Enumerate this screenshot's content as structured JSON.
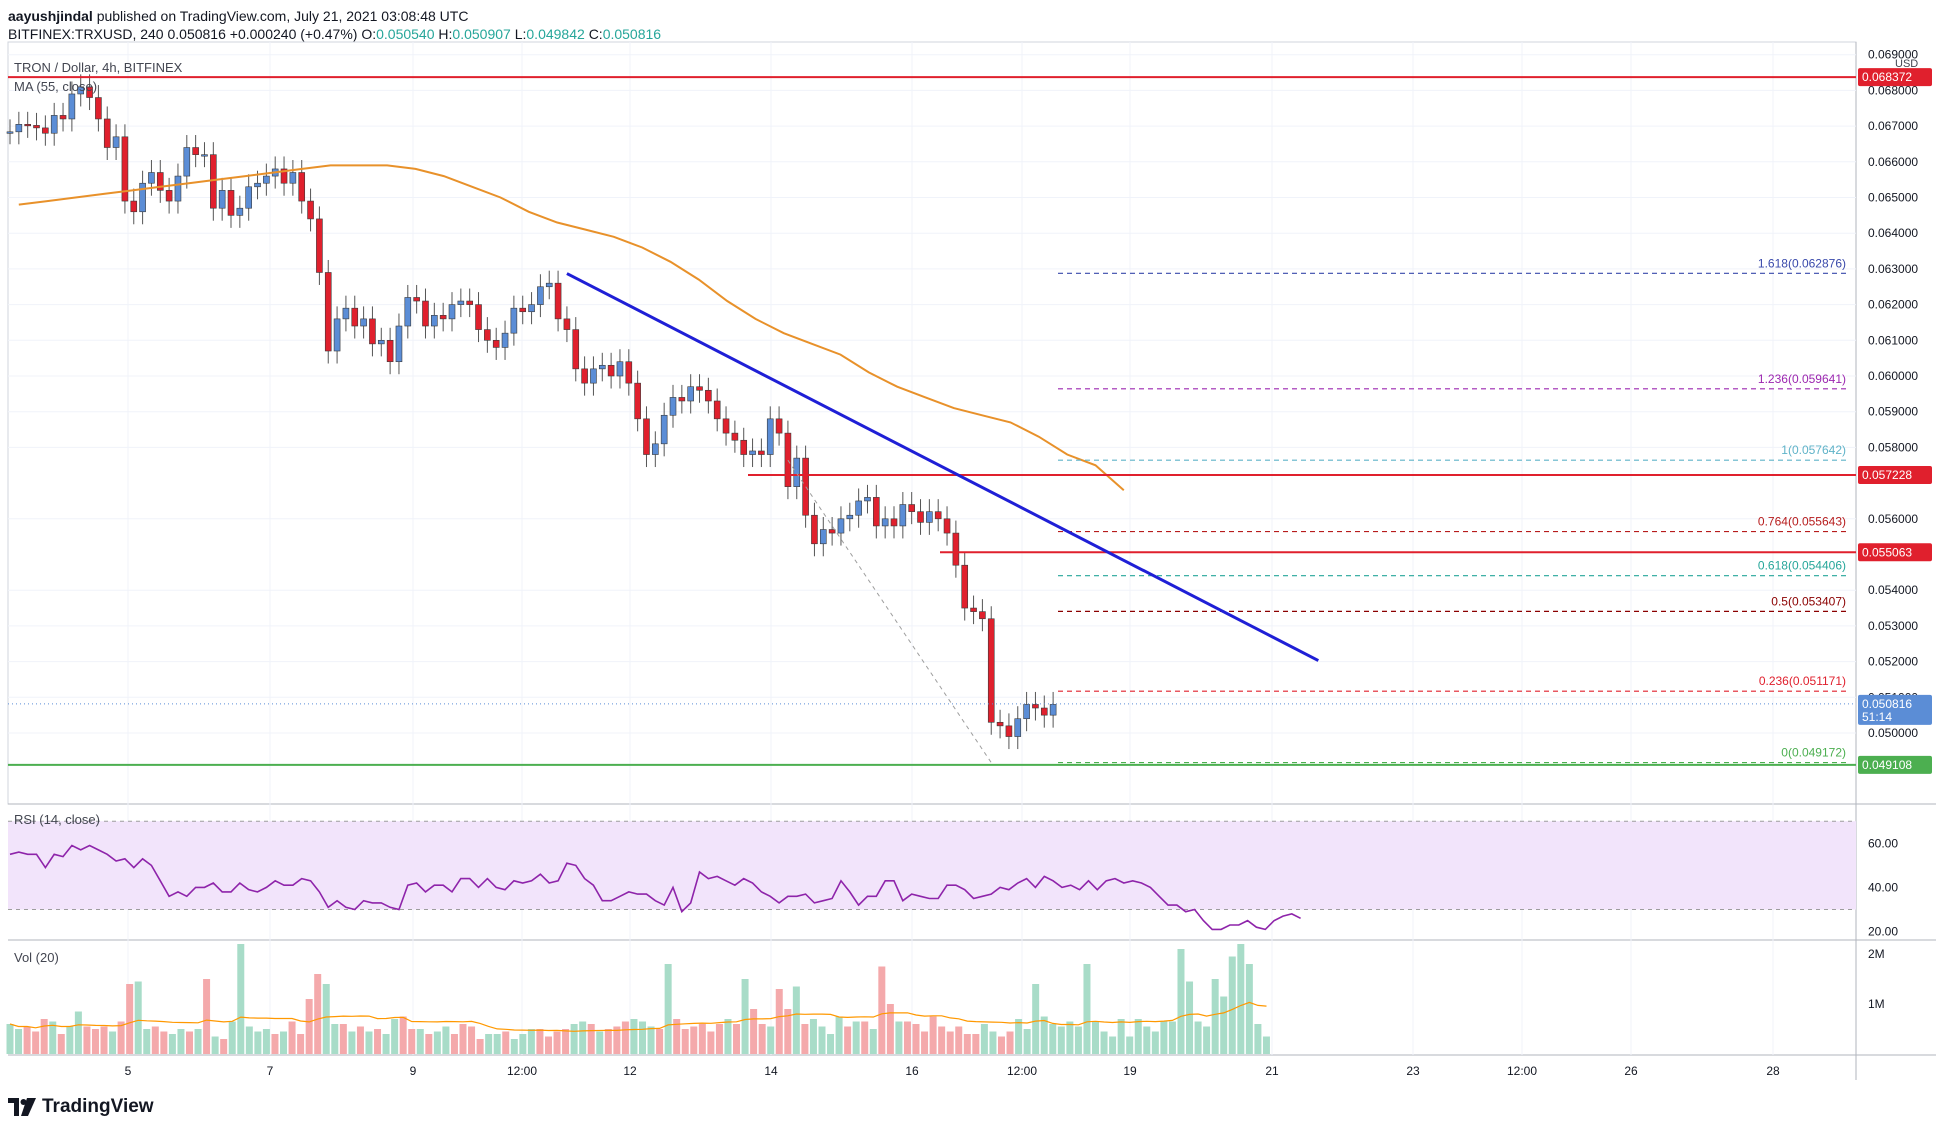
{
  "header": {
    "author": "aayushjindal",
    "published_text": "published on TradingView.com, July 21, 2021 03:08:48 UTC",
    "symbol": "BITFINEX:TRXUSD, 240",
    "last": "0.050816",
    "change": "+0.000240 (+0.47%)",
    "o_label": "O:",
    "o": "0.050540",
    "h_label": "H:",
    "h": "0.050907",
    "l_label": "L:",
    "l": "0.049842",
    "c_label": "C:",
    "c": "0.050816"
  },
  "legend": {
    "title": "TRON / Dollar, 4h, BITFINEX",
    "ma": "MA (55, close)",
    "rsi": "RSI (14, close)",
    "vol": "Vol (20)",
    "currency": "USD",
    "countdown": "51:14"
  },
  "footer": {
    "brand": "TradingView"
  },
  "colors": {
    "up": "#5b8dd6",
    "down": "#e0202d",
    "ma": "#e8912a",
    "trend": "#1f1fd6",
    "support": "#4caf50",
    "resistance": "#e0202d"
  },
  "chart_data": [
    {
      "type": "candlestick",
      "title": "TRON / Dollar, 4h, BITFINEX",
      "x_tick_labels": [
        "5",
        "7",
        "9",
        "12:00",
        "12",
        "14",
        "16",
        "12:00",
        "19",
        "21",
        "23",
        "12:00",
        "26",
        "28"
      ],
      "y_tick_labels": [
        "0.050000",
        "0.051000",
        "0.052000",
        "0.053000",
        "0.054000",
        "0.056000",
        "0.058000",
        "0.059000",
        "0.060000",
        "0.061000",
        "0.062000",
        "0.063000",
        "0.064000",
        "0.065000",
        "0.066000",
        "0.067000",
        "0.068000",
        "0.069000"
      ],
      "ylim": [
        0.0484,
        0.0694
      ],
      "closes": [
        0.06684,
        0.06705,
        0.06702,
        0.06695,
        0.0668,
        0.0673,
        0.0672,
        0.0679,
        0.0681,
        0.0678,
        0.0672,
        0.0664,
        0.0667,
        0.0649,
        0.0646,
        0.0654,
        0.0657,
        0.0652,
        0.0649,
        0.0656,
        0.0664,
        0.0662,
        0.0662,
        0.0647,
        0.0652,
        0.0645,
        0.0647,
        0.0653,
        0.0654,
        0.0656,
        0.0658,
        0.0654,
        0.0657,
        0.0649,
        0.0644,
        0.0629,
        0.0607,
        0.0616,
        0.0619,
        0.0614,
        0.0616,
        0.0609,
        0.061,
        0.0604,
        0.0614,
        0.0622,
        0.0621,
        0.0614,
        0.0617,
        0.0616,
        0.062,
        0.0621,
        0.062,
        0.0613,
        0.061,
        0.0608,
        0.0612,
        0.0619,
        0.0618,
        0.062,
        0.0625,
        0.0626,
        0.0616,
        0.0613,
        0.0602,
        0.0598,
        0.0602,
        0.0603,
        0.06,
        0.0604,
        0.0598,
        0.0588,
        0.0578,
        0.0581,
        0.0589,
        0.0594,
        0.0593,
        0.0597,
        0.0596,
        0.0593,
        0.0588,
        0.0584,
        0.0582,
        0.0578,
        0.0579,
        0.0578,
        0.0588,
        0.0584,
        0.0569,
        0.0577,
        0.0561,
        0.0553,
        0.0557,
        0.0556,
        0.056,
        0.0561,
        0.0565,
        0.0566,
        0.0558,
        0.056,
        0.0558,
        0.0564,
        0.0562,
        0.0559,
        0.0562,
        0.056,
        0.0556,
        0.0547,
        0.0535,
        0.0534,
        0.0532,
        0.0503,
        0.0502,
        0.0499,
        0.0504,
        0.0508,
        0.0507,
        0.0505,
        0.0508
      ],
      "ma_55": [
        0.0648,
        0.0649,
        0.065,
        0.0651,
        0.0652,
        0.0653,
        0.0654,
        0.0655,
        0.0656,
        0.0657,
        0.0658,
        0.0659,
        0.0659,
        0.0659,
        0.0658,
        0.0656,
        0.0653,
        0.065,
        0.0646,
        0.0643,
        0.0641,
        0.0639,
        0.0636,
        0.0632,
        0.0627,
        0.0621,
        0.0616,
        0.0612,
        0.0609,
        0.0606,
        0.0601,
        0.0597,
        0.0594,
        0.0591,
        0.0589,
        0.0587,
        0.0583,
        0.0578,
        0.0575,
        0.0568
      ],
      "ma_55_x_range": [
        1,
        126
      ],
      "fibonacci": [
        {
          "label": "0(0.049172)",
          "value": 0.049172
        },
        {
          "label": "0.236(0.051171)",
          "value": 0.051171
        },
        {
          "label": "0.5(0.053407)",
          "value": 0.053407
        },
        {
          "label": "0.618(0.054406)",
          "value": 0.054406
        },
        {
          "label": "0.764(0.055643)",
          "value": 0.055643
        },
        {
          "label": "1(0.057642)",
          "value": 0.057642
        },
        {
          "label": "1.236(0.059641)",
          "value": 0.059641
        },
        {
          "label": "1.618(0.062876)",
          "value": 0.062876
        }
      ],
      "levels": [
        {
          "label": "0.068372",
          "value": 0.068372,
          "color": "#e0202d"
        },
        {
          "label": "0.057228",
          "value": 0.057228,
          "color": "#e0202d"
        },
        {
          "label": "0.055063",
          "value": 0.055063,
          "color": "#e0202d"
        },
        {
          "label": "0.049108",
          "value": 0.049108,
          "color": "#4caf50"
        }
      ],
      "current_price": {
        "label": "0.050816",
        "value": 0.050816
      },
      "trendline": [
        {
          "index": 63,
          "value": 0.06287
        },
        {
          "index": 148,
          "value": 0.05203
        }
      ]
    },
    {
      "type": "line",
      "title": "RSI (14, close)",
      "y_tick_labels": [
        "60.00",
        "40.00",
        "20.00"
      ],
      "ylim": [
        18,
        76
      ],
      "band": [
        30,
        70
      ],
      "values": [
        55,
        56,
        55,
        55,
        49,
        55,
        54,
        59,
        57,
        59,
        57,
        55,
        52,
        53,
        49,
        53,
        50,
        43,
        36,
        38,
        36,
        40,
        40,
        42,
        38,
        38,
        42,
        39,
        38,
        40,
        43,
        41,
        41,
        44,
        43,
        38,
        31,
        34,
        31,
        30,
        34,
        33,
        33,
        31,
        30,
        41,
        42,
        38,
        41,
        41,
        38,
        44,
        44,
        40,
        44,
        40,
        39,
        43,
        42,
        43,
        46,
        42,
        43,
        51,
        50,
        44,
        41,
        34,
        34,
        36,
        38,
        37,
        37,
        34,
        32,
        40,
        29,
        33,
        47,
        44,
        45,
        43,
        41,
        44,
        42,
        38,
        36,
        33,
        36,
        36,
        37,
        33,
        34,
        35,
        43,
        38,
        32,
        36,
        36,
        43,
        43,
        34,
        37,
        36,
        35,
        35,
        41,
        41,
        39,
        35,
        36,
        37,
        40,
        39,
        42,
        44,
        40,
        45,
        43,
        40,
        41,
        39,
        43,
        39,
        43,
        44,
        42,
        43,
        42,
        40,
        36,
        32,
        32,
        29,
        30,
        25,
        21,
        21,
        23,
        23,
        25,
        22,
        21,
        25,
        27,
        28,
        26
      ]
    },
    {
      "type": "bar",
      "title": "Vol (20)",
      "y_tick_labels": [
        "2M",
        "1M"
      ],
      "ylim": [
        0,
        2.2
      ],
      "values": [
        0.6,
        0.5,
        0.55,
        0.45,
        0.7,
        0.65,
        0.4,
        0.55,
        0.85,
        0.55,
        0.5,
        0.55,
        0.45,
        0.65,
        1.4,
        1.45,
        0.5,
        0.55,
        0.45,
        0.4,
        0.5,
        0.45,
        0.5,
        1.5,
        0.35,
        0.3,
        0.65,
        2.2,
        0.55,
        0.45,
        0.5,
        0.4,
        0.45,
        0.65,
        0.4,
        1.1,
        1.6,
        1.4,
        0.6,
        0.6,
        0.45,
        0.55,
        0.45,
        0.5,
        0.4,
        0.7,
        0.75,
        0.5,
        0.5,
        0.4,
        0.45,
        0.55,
        0.4,
        0.6,
        0.55,
        0.3,
        0.4,
        0.4,
        0.45,
        0.3,
        0.4,
        0.5,
        0.5,
        0.35,
        0.45,
        0.5,
        0.6,
        0.65,
        0.6,
        0.45,
        0.5,
        0.55,
        0.65,
        0.7,
        0.65,
        0.55,
        0.5,
        1.8,
        0.7,
        0.5,
        0.55,
        0.6,
        0.45,
        0.6,
        0.7,
        0.6,
        1.5,
        0.9,
        0.6,
        0.55,
        1.3,
        0.9,
        1.35,
        0.6,
        0.7,
        0.55,
        0.4,
        0.75,
        0.55,
        0.65,
        0.65,
        0.5,
        1.75,
        1.0,
        0.65,
        0.65,
        0.6,
        0.45,
        0.75,
        0.55,
        0.45,
        0.55,
        0.4,
        0.4,
        0.6,
        0.45,
        0.35,
        0.45,
        0.7,
        0.5,
        1.4,
        0.75,
        0.6,
        0.55,
        0.65,
        0.55,
        1.8,
        0.65,
        0.45,
        0.35,
        0.7,
        0.35,
        0.7,
        0.55,
        0.45,
        0.65,
        0.65,
        2.1,
        1.45,
        0.65,
        0.55,
        1.5,
        1.15,
        1.95,
        2.2,
        1.8,
        0.6,
        0.35
      ]
    }
  ]
}
